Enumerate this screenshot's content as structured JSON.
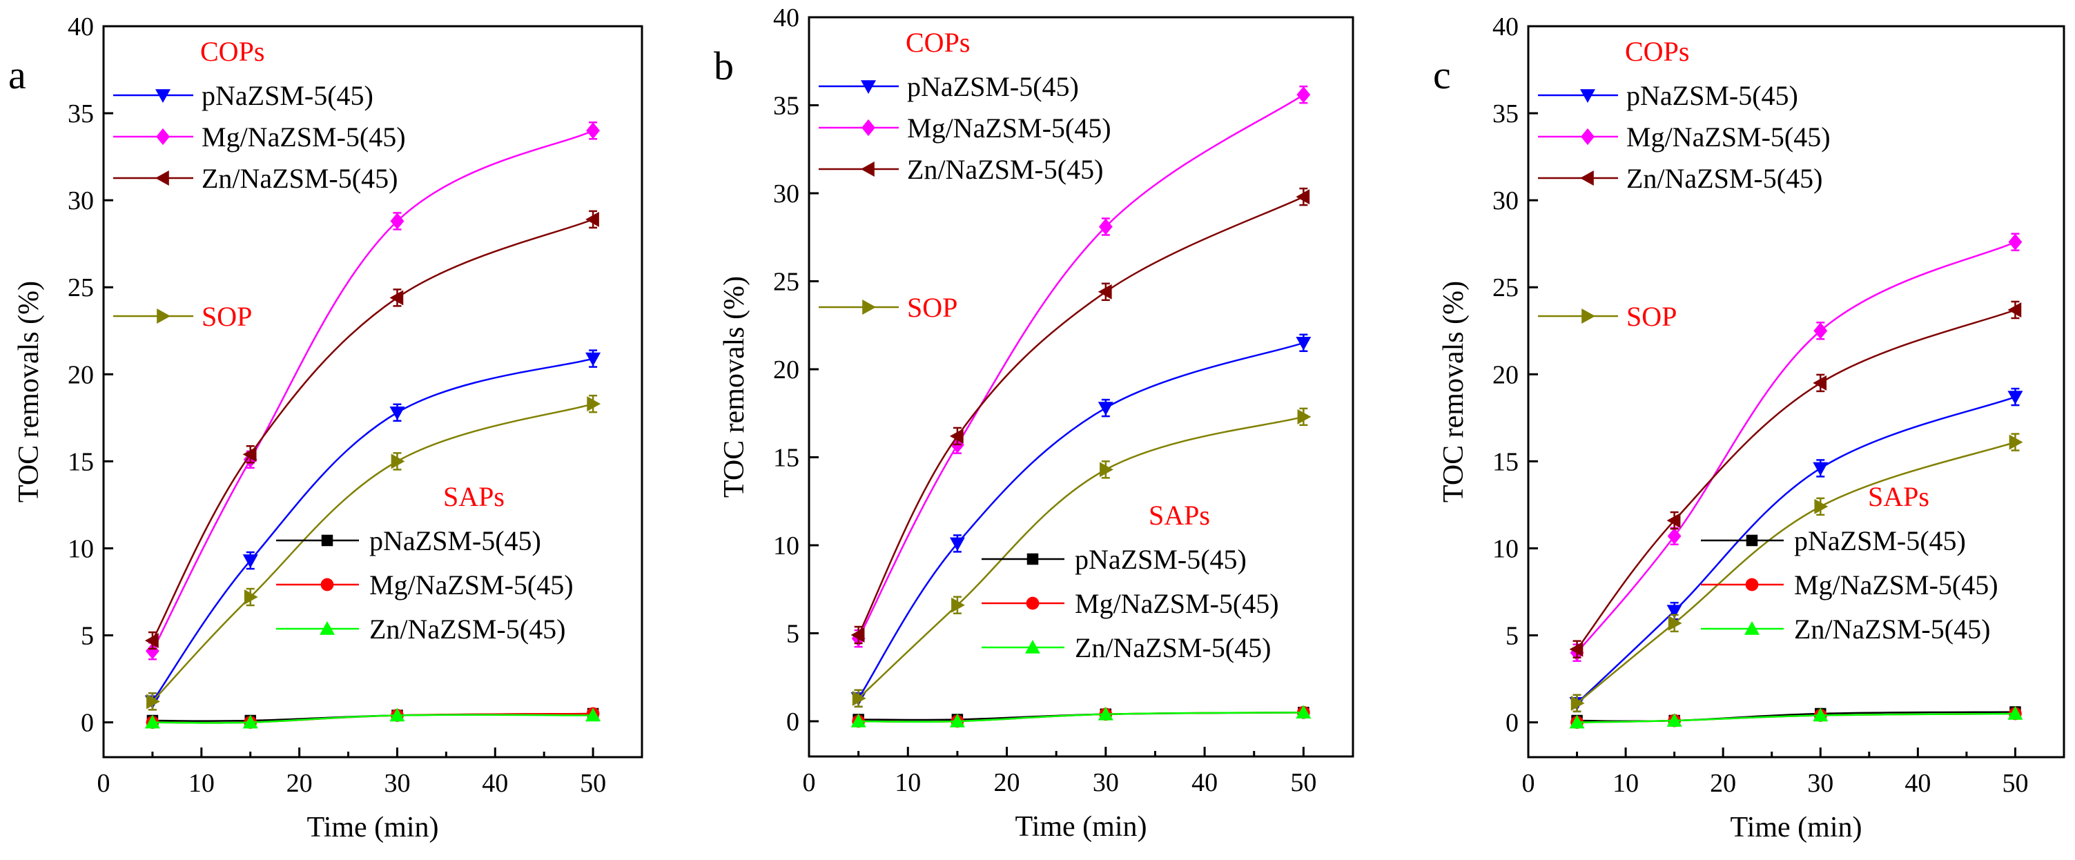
{
  "figure": {
    "description_free": true
  },
  "chart_data": [
    {
      "type": "line",
      "panel_label": "a",
      "xlabel": "Time (min)",
      "ylabel": "TOC removals (%)",
      "xlim": [
        0,
        55
      ],
      "ylim": [
        -2,
        40
      ],
      "xticks": [
        0,
        10,
        20,
        30,
        40,
        50
      ],
      "yticks": [
        0,
        5,
        10,
        15,
        20,
        25,
        30,
        35,
        40
      ],
      "cops_title": "COPs",
      "sop_title": "SOP",
      "saps_title": "SAPs",
      "x": [
        5,
        15,
        30,
        50
      ],
      "series": [
        {
          "name": "pNaZSM-5(45)",
          "group": "COPs",
          "color": "#0000ff",
          "marker": "triangle-down",
          "values": [
            1.2,
            9.3,
            17.8,
            20.9
          ]
        },
        {
          "name": "Mg/NaZSM-5(45)",
          "group": "COPs",
          "color": "#ff00ff",
          "marker": "diamond",
          "values": [
            4.1,
            15.1,
            28.8,
            34.0
          ]
        },
        {
          "name": "Zn/NaZSM-5(45)",
          "group": "COPs",
          "color": "#800000",
          "marker": "triangle-left",
          "values": [
            4.7,
            15.4,
            24.4,
            28.9
          ]
        },
        {
          "name": "SOP",
          "group": "SOP",
          "color": "#808000",
          "marker": "triangle-right",
          "values": [
            1.2,
            7.2,
            15.0,
            18.3
          ]
        },
        {
          "name": "pNaZSM-5(45)",
          "group": "SAPs",
          "color": "#000000",
          "marker": "square",
          "values": [
            0.1,
            0.1,
            0.4,
            0.5
          ]
        },
        {
          "name": "Mg/NaZSM-5(45)",
          "group": "SAPs",
          "color": "#ff0000",
          "marker": "circle",
          "values": [
            0.0,
            0.0,
            0.4,
            0.5
          ]
        },
        {
          "name": "Zn/NaZSM-5(45)",
          "group": "SAPs",
          "color": "#00ff00",
          "marker": "triangle-up",
          "values": [
            0.0,
            0.0,
            0.4,
            0.4
          ]
        }
      ]
    },
    {
      "type": "line",
      "panel_label": "b",
      "xlabel": "Time (min)",
      "ylabel": "TOC removals (%)",
      "xlim": [
        0,
        55
      ],
      "ylim": [
        -2,
        40
      ],
      "xticks": [
        0,
        10,
        20,
        30,
        40,
        50
      ],
      "yticks": [
        0,
        5,
        10,
        15,
        20,
        25,
        30,
        35,
        40
      ],
      "cops_title": "COPs",
      "sop_title": "SOP",
      "saps_title": "SAPs",
      "x": [
        5,
        15,
        30,
        50
      ],
      "series": [
        {
          "name": "pNaZSM-5(45)",
          "group": "COPs",
          "color": "#0000ff",
          "marker": "triangle-down",
          "values": [
            1.3,
            10.1,
            17.8,
            21.5
          ]
        },
        {
          "name": "Mg/NaZSM-5(45)",
          "group": "COPs",
          "color": "#ff00ff",
          "marker": "diamond",
          "values": [
            4.7,
            15.7,
            28.1,
            35.6
          ]
        },
        {
          "name": "Zn/NaZSM-5(45)",
          "group": "COPs",
          "color": "#800000",
          "marker": "triangle-left",
          "values": [
            4.9,
            16.2,
            24.4,
            29.8
          ]
        },
        {
          "name": "SOP",
          "group": "SOP",
          "color": "#808000",
          "marker": "triangle-right",
          "values": [
            1.3,
            6.6,
            14.3,
            17.3
          ]
        },
        {
          "name": "pNaZSM-5(45)",
          "group": "SAPs",
          "color": "#000000",
          "marker": "square",
          "values": [
            0.1,
            0.1,
            0.4,
            0.5
          ]
        },
        {
          "name": "Mg/NaZSM-5(45)",
          "group": "SAPs",
          "color": "#ff0000",
          "marker": "circle",
          "values": [
            0.0,
            0.0,
            0.4,
            0.5
          ]
        },
        {
          "name": "Zn/NaZSM-5(45)",
          "group": "SAPs",
          "color": "#00ff00",
          "marker": "triangle-up",
          "values": [
            0.0,
            0.0,
            0.4,
            0.5
          ]
        }
      ]
    },
    {
      "type": "line",
      "panel_label": "c",
      "xlabel": "Time (min)",
      "ylabel": "TOC removals (%)",
      "xlim": [
        0,
        55
      ],
      "ylim": [
        -2,
        40
      ],
      "xticks": [
        0,
        10,
        20,
        30,
        40,
        50
      ],
      "yticks": [
        0,
        5,
        10,
        15,
        20,
        25,
        30,
        35,
        40
      ],
      "cops_title": "COPs",
      "sop_title": "SOP",
      "saps_title": "SAPs",
      "x": [
        5,
        15,
        30,
        50
      ],
      "series": [
        {
          "name": "pNaZSM-5(45)",
          "group": "COPs",
          "color": "#0000ff",
          "marker": "triangle-down",
          "values": [
            1.1,
            6.4,
            14.6,
            18.7
          ]
        },
        {
          "name": "Mg/NaZSM-5(45)",
          "group": "COPs",
          "color": "#ff00ff",
          "marker": "diamond",
          "values": [
            4.0,
            10.7,
            22.5,
            27.6
          ]
        },
        {
          "name": "Zn/NaZSM-5(45)",
          "group": "COPs",
          "color": "#800000",
          "marker": "triangle-left",
          "values": [
            4.2,
            11.6,
            19.5,
            23.7
          ]
        },
        {
          "name": "SOP",
          "group": "SOP",
          "color": "#808000",
          "marker": "triangle-right",
          "values": [
            1.1,
            5.7,
            12.4,
            16.1
          ]
        },
        {
          "name": "pNaZSM-5(45)",
          "group": "SAPs",
          "color": "#000000",
          "marker": "square",
          "values": [
            0.1,
            0.1,
            0.5,
            0.6
          ]
        },
        {
          "name": "Mg/NaZSM-5(45)",
          "group": "SAPs",
          "color": "#ff0000",
          "marker": "circle",
          "values": [
            0.0,
            0.1,
            0.4,
            0.5
          ]
        },
        {
          "name": "Zn/NaZSM-5(45)",
          "group": "SAPs",
          "color": "#00ff00",
          "marker": "triangle-up",
          "values": [
            0.0,
            0.1,
            0.4,
            0.5
          ]
        }
      ]
    }
  ]
}
